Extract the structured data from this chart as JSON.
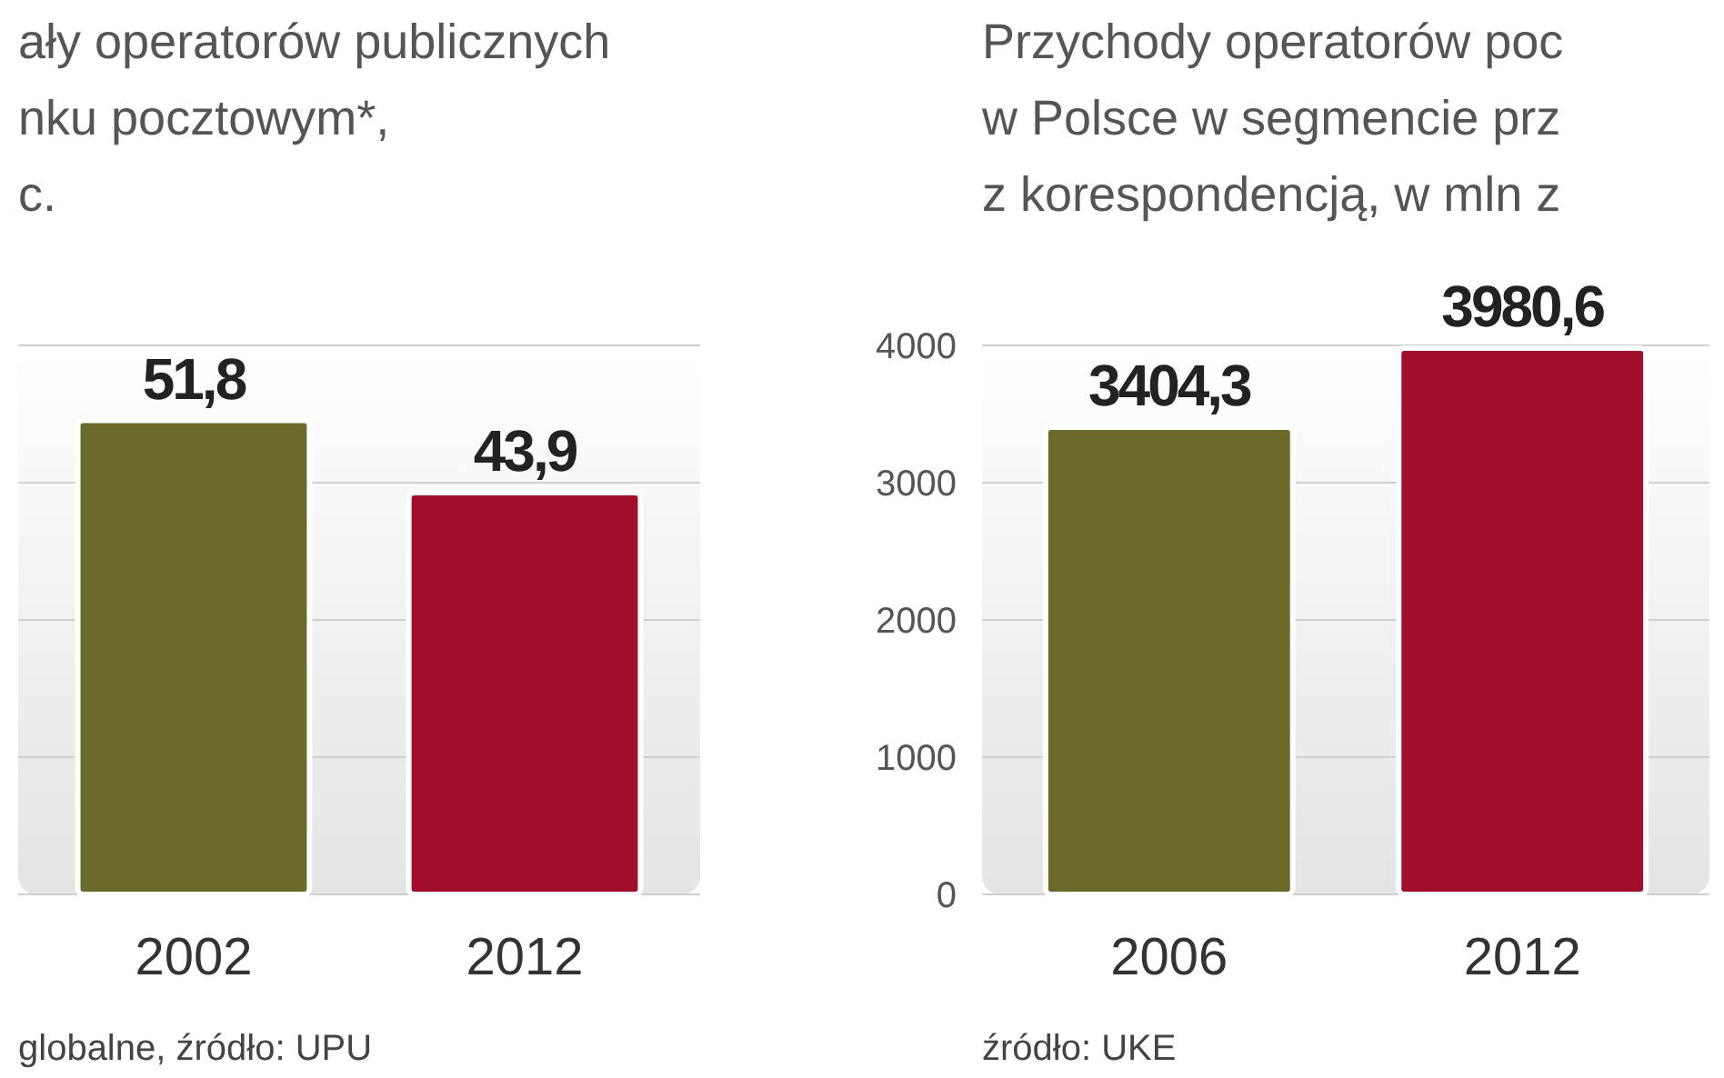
{
  "chart_data": [
    {
      "type": "bar",
      "title": "ały operatorów publicznych\nnku pocztowym*,\nc.",
      "categories": [
        "2002",
        "2012"
      ],
      "values": [
        51.8,
        43.9
      ],
      "value_labels": [
        "51,8",
        "43,9"
      ],
      "colors": [
        "#6b6a2b",
        "#a20f2c"
      ],
      "ylim": [
        0,
        60
      ],
      "yticks": [
        {
          "value": 0,
          "label": null
        },
        {
          "value": 15,
          "label": null
        },
        {
          "value": 30,
          "label": null
        },
        {
          "value": 45,
          "label": null
        },
        {
          "value": 60,
          "label": null
        }
      ],
      "grid": "y",
      "tick_labels": "x",
      "annotations": [
        "globalne, źródło: UPU"
      ]
    },
    {
      "type": "bar",
      "title": "Przychody operatorów poc\nw Polsce w segmencie prz\nz korespondencją, w mln z",
      "categories": [
        "2006",
        "2012"
      ],
      "values": [
        3404.3,
        3980.6
      ],
      "value_labels": [
        "3404,3",
        "3980,6"
      ],
      "colors": [
        "#6b6a2b",
        "#a20f2c"
      ],
      "ylim": [
        0,
        4000
      ],
      "yticks": [
        0,
        1000,
        2000,
        3000,
        4000
      ],
      "grid": "y",
      "annotations": [
        "źródło: UKE"
      ]
    }
  ]
}
